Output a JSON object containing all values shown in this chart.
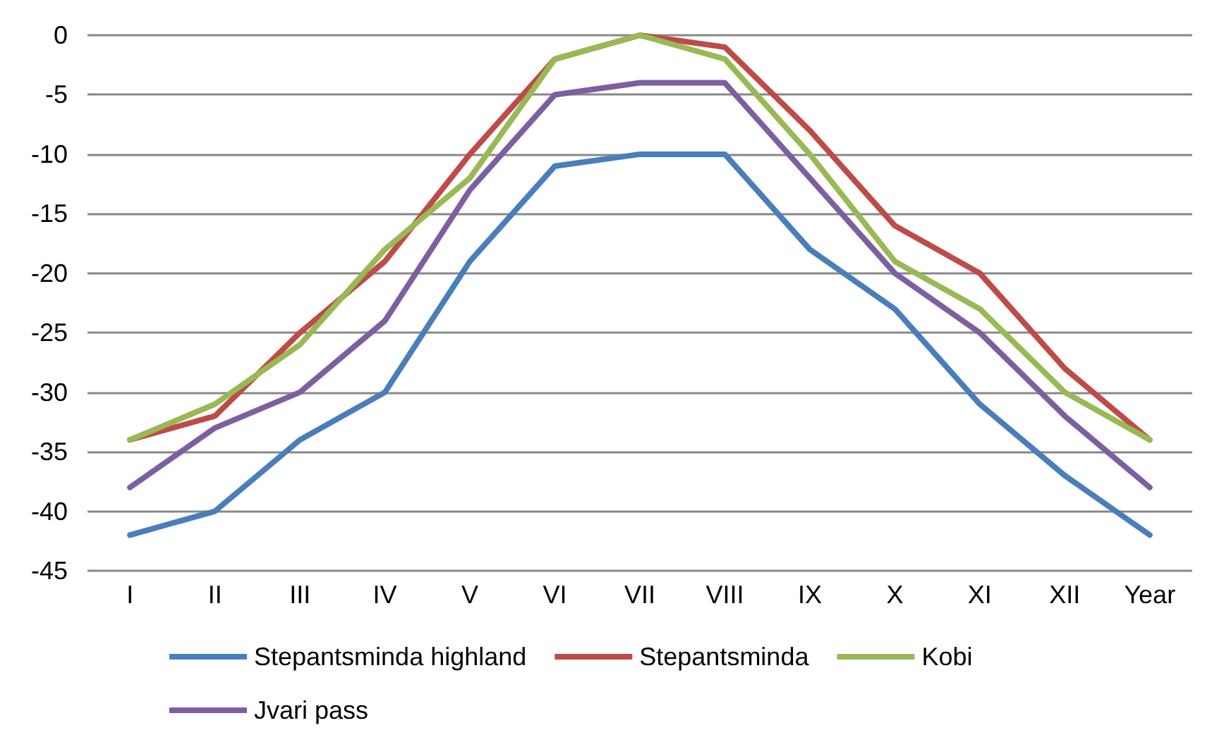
{
  "chart_data": {
    "type": "line",
    "categories": [
      "I",
      "II",
      "III",
      "IV",
      "V",
      "VI",
      "VII",
      "VIII",
      "IX",
      "X",
      "XI",
      "XII",
      "Year"
    ],
    "series": [
      {
        "name": "Stepantsminda highland",
        "color": "#4a7ebb",
        "values": [
          -42,
          -40,
          -34,
          -30,
          -19,
          -11,
          -10,
          -10,
          -18,
          -23,
          -31,
          -37,
          -42
        ]
      },
      {
        "name": "Stepantsminda",
        "color": "#be4b48",
        "values": [
          -34,
          -32,
          -25,
          -19,
          -10,
          -2,
          0,
          -1,
          -8,
          -16,
          -20,
          -28,
          -34
        ]
      },
      {
        "name": "Kobi",
        "color": "#98b954",
        "values": [
          -34,
          -31,
          -26,
          -18,
          -12,
          -2,
          0,
          -2,
          -10,
          -19,
          -23,
          -30,
          -34
        ]
      },
      {
        "name": "Jvari pass",
        "color": "#7d5fa0",
        "values": [
          -38,
          -33,
          -30,
          -24,
          -13,
          -5,
          -4,
          -4,
          -12,
          -20,
          -25,
          -32,
          -38
        ]
      }
    ],
    "ylim": [
      -45,
      0
    ],
    "yticks": [
      0,
      -5,
      -10,
      -15,
      -20,
      -25,
      -30,
      -35,
      -40,
      -45
    ],
    "grid": "y",
    "legend": "bottom",
    "marker": "none",
    "line_style": "solid"
  }
}
